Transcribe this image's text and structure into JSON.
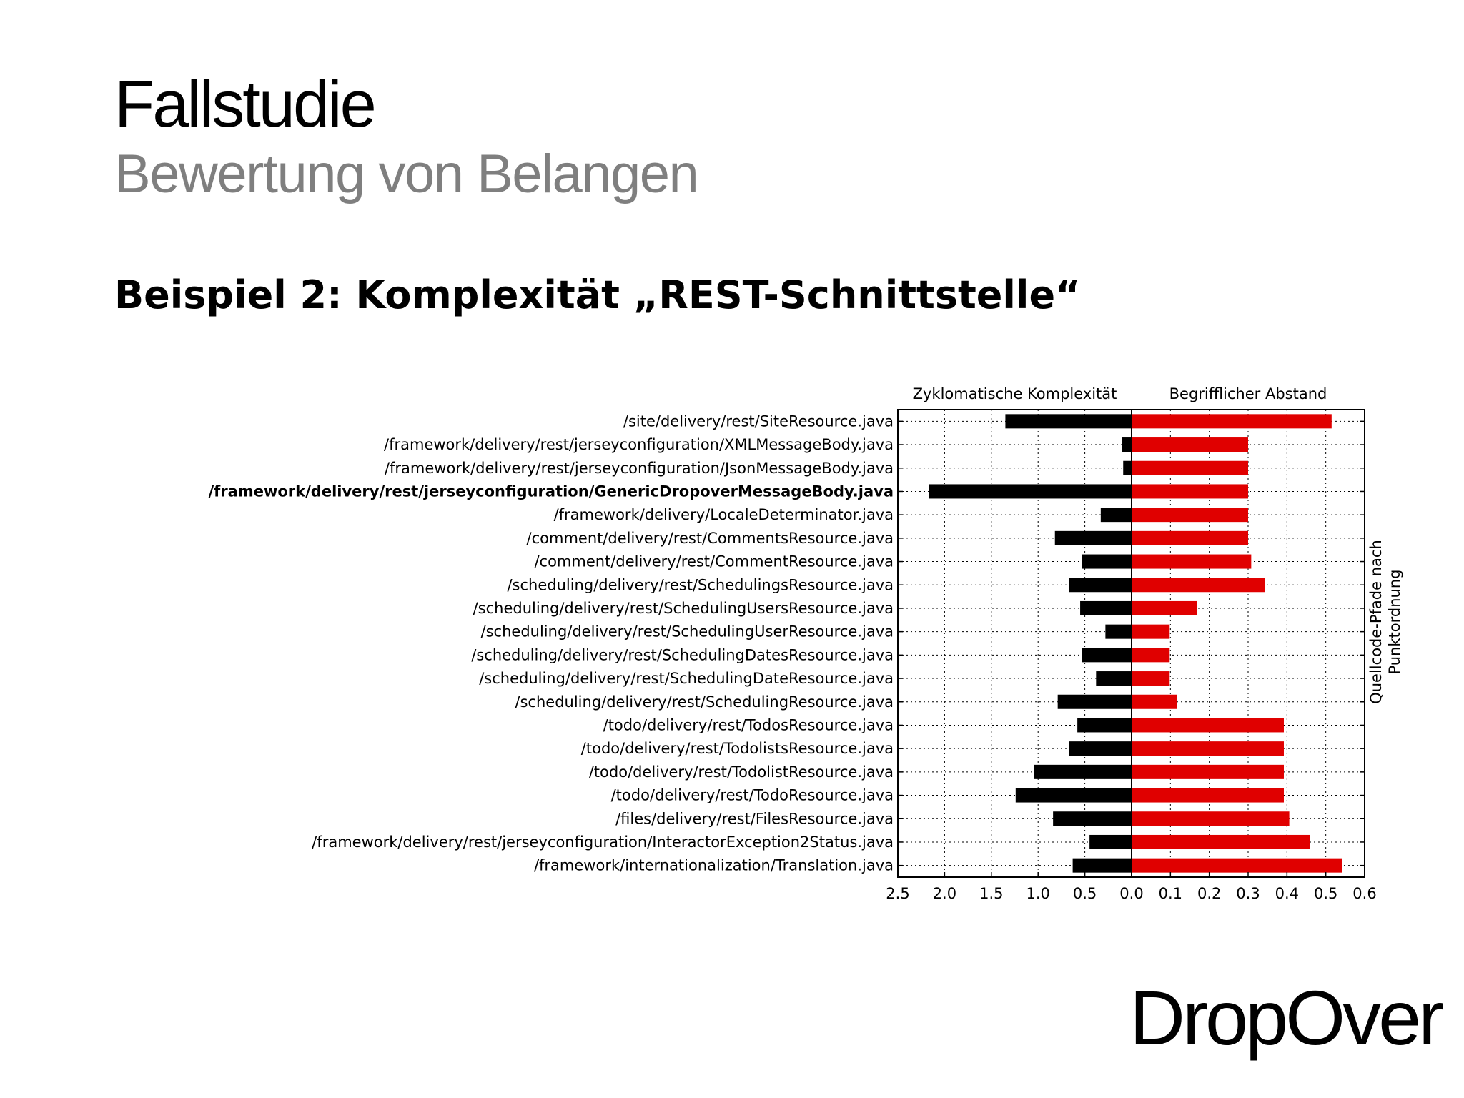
{
  "slide": {
    "title": "Fallstudie",
    "subtitle": "Bewertung von Belangen",
    "heading": "Beispiel 2: Komplexität „REST-Schnittstelle“",
    "brand": "DropOver"
  },
  "colors": {
    "left_bars": "#000000",
    "right_bars": "#e00000",
    "subtitle": "#7f7f7f"
  },
  "chart_data": {
    "type": "bar",
    "orientation": "horizontal",
    "categories": [
      "/site/delivery/rest/SiteResource.java",
      "/framework/delivery/rest/jerseyconfiguration/XMLMessageBody.java",
      "/framework/delivery/rest/jerseyconfiguration/JsonMessageBody.java",
      "/framework/delivery/rest/jerseyconfiguration/GenericDropoverMessageBody.java",
      "/framework/delivery/LocaleDeterminator.java",
      "/comment/delivery/rest/CommentsResource.java",
      "/comment/delivery/rest/CommentResource.java",
      "/scheduling/delivery/rest/SchedulingsResource.java",
      "/scheduling/delivery/rest/SchedulingUsersResource.java",
      "/scheduling/delivery/rest/SchedulingUserResource.java",
      "/scheduling/delivery/rest/SchedulingDatesResource.java",
      "/scheduling/delivery/rest/SchedulingDateResource.java",
      "/scheduling/delivery/rest/SchedulingResource.java",
      "/todo/delivery/rest/TodosResource.java",
      "/todo/delivery/rest/TodolistsResource.java",
      "/todo/delivery/rest/TodolistResource.java",
      "/todo/delivery/rest/TodoResource.java",
      "/files/delivery/rest/FilesResource.java",
      "/framework/delivery/rest/jerseyconfiguration/InteractorException2Status.java",
      "/framework/internationalization/Translation.java"
    ],
    "highlighted_category": "/framework/delivery/rest/jerseyconfiguration/GenericDropoverMessageBody.java",
    "panels": [
      {
        "title": "Zyklomatische Komplexität",
        "xlim": [
          2.5,
          0.0
        ],
        "ticks": [
          "2.5",
          "2.0",
          "1.5",
          "1.0",
          "0.5",
          "0.0"
        ],
        "tick_values": [
          2.5,
          2.0,
          1.5,
          1.0,
          0.5,
          0.0
        ],
        "values": [
          1.35,
          0.1,
          0.09,
          2.17,
          0.33,
          0.82,
          0.53,
          0.67,
          0.55,
          0.28,
          0.53,
          0.38,
          0.79,
          0.58,
          0.67,
          1.04,
          1.24,
          0.84,
          0.45,
          0.63
        ]
      },
      {
        "title": "Begrifflicher Abstand",
        "xlim": [
          0.0,
          0.6
        ],
        "ticks": [
          "0.0",
          "0.1",
          "0.2",
          "0.3",
          "0.4",
          "0.5",
          "0.6"
        ],
        "tick_values": [
          0.0,
          0.1,
          0.2,
          0.3,
          0.4,
          0.5,
          0.6
        ],
        "values": [
          0.515,
          0.3,
          0.3,
          0.3,
          0.3,
          0.3,
          0.308,
          0.343,
          0.168,
          0.098,
          0.098,
          0.098,
          0.117,
          0.392,
          0.392,
          0.392,
          0.392,
          0.406,
          0.459,
          0.542
        ]
      }
    ],
    "ylabel_lines": [
      "Quellcode-Pfade nach",
      "Punktordnung"
    ],
    "grid": true
  }
}
